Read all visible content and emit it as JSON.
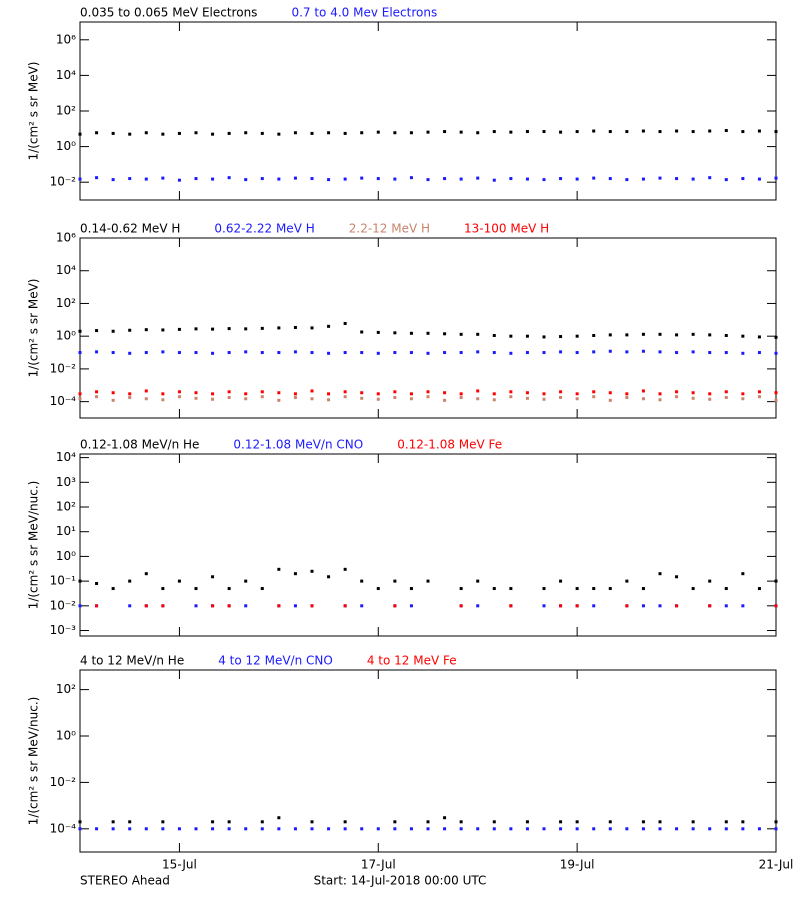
{
  "chart_data": [
    {
      "type": "scatter",
      "y_scale": "log",
      "y_label": "1/(cm² s sr MeV)",
      "xlim": [
        0,
        168
      ],
      "ylim": [
        0.001,
        10000000
      ],
      "yticks": [
        {
          "value": 0.01,
          "label": "10⁻²"
        },
        {
          "value": 1,
          "label": "10⁰"
        },
        {
          "value": 100,
          "label": "10²"
        },
        {
          "value": 10000,
          "label": "10⁴"
        },
        {
          "value": 1000000,
          "label": "10⁶"
        }
      ],
      "x": [
        0,
        4,
        8,
        12,
        16,
        20,
        24,
        28,
        32,
        36,
        40,
        44,
        48,
        52,
        56,
        60,
        64,
        68,
        72,
        76,
        80,
        84,
        88,
        92,
        96,
        100,
        104,
        108,
        112,
        116,
        120,
        124,
        128,
        132,
        136,
        140,
        144,
        148,
        152,
        156,
        160,
        164,
        168
      ],
      "series": [
        {
          "name": "0.035 to 0.065 MeV Electrons",
          "color": "#000000",
          "values": [
            5,
            6,
            5.5,
            5,
            6,
            5,
            5.5,
            6,
            5,
            5.5,
            6,
            5.5,
            5,
            6,
            5.5,
            6,
            5.5,
            6,
            6.5,
            6,
            6,
            6.5,
            7,
            6.5,
            6,
            7,
            6.5,
            7,
            7,
            6.5,
            7,
            7.5,
            7,
            7,
            7.5,
            7,
            7.5,
            7,
            7.5,
            8,
            7,
            7.5,
            7
          ]
        },
        {
          "name": "0.7 to 4.0 Mev Electrons",
          "color": "#1a1aff",
          "values": [
            0.015,
            0.018,
            0.014,
            0.016,
            0.015,
            0.017,
            0.013,
            0.016,
            0.015,
            0.018,
            0.014,
            0.016,
            0.015,
            0.017,
            0.016,
            0.014,
            0.015,
            0.017,
            0.016,
            0.015,
            0.018,
            0.014,
            0.016,
            0.015,
            0.017,
            0.013,
            0.016,
            0.015,
            0.014,
            0.016,
            0.015,
            0.017,
            0.016,
            0.014,
            0.015,
            0.017,
            0.016,
            0.015,
            0.018,
            0.014,
            0.016,
            0.015,
            0.017
          ]
        }
      ]
    },
    {
      "type": "scatter",
      "y_scale": "log",
      "y_label": "1/(cm² s sr MeV)",
      "xlim": [
        0,
        168
      ],
      "ylim": [
        1e-05,
        1000000
      ],
      "yticks": [
        {
          "value": 0.0001,
          "label": "10⁻⁴"
        },
        {
          "value": 0.01,
          "label": "10⁻²"
        },
        {
          "value": 1,
          "label": "10⁰"
        },
        {
          "value": 100,
          "label": "10²"
        },
        {
          "value": 10000,
          "label": "10⁴"
        },
        {
          "value": 1000000,
          "label": "10⁶"
        }
      ],
      "x": [
        0,
        4,
        8,
        12,
        16,
        20,
        24,
        28,
        32,
        36,
        40,
        44,
        48,
        52,
        56,
        60,
        64,
        68,
        72,
        76,
        80,
        84,
        88,
        92,
        96,
        100,
        104,
        108,
        112,
        116,
        120,
        124,
        128,
        132,
        136,
        140,
        144,
        148,
        152,
        156,
        160,
        164,
        168
      ],
      "series": [
        {
          "name": "0.14-0.62 MeV H",
          "color": "#000000",
          "values": [
            2,
            2.2,
            2,
            2.3,
            2.5,
            2.4,
            2.6,
            2.8,
            2.7,
            2.9,
            2.8,
            3,
            3.2,
            3.4,
            3.2,
            4,
            6,
            1.8,
            1.7,
            1.6,
            1.5,
            1.5,
            1.4,
            1.3,
            1.3,
            1.1,
            1,
            1,
            0.9,
            0.95,
            1,
            1.1,
            1.2,
            1.2,
            1.3,
            1.3,
            1.2,
            1.3,
            1.2,
            1.1,
            1,
            0.9,
            0.85
          ]
        },
        {
          "name": "0.62-2.22 MeV H",
          "color": "#1a1aff",
          "values": [
            0.1,
            0.11,
            0.1,
            0.09,
            0.1,
            0.11,
            0.1,
            0.1,
            0.09,
            0.1,
            0.11,
            0.1,
            0.1,
            0.11,
            0.1,
            0.09,
            0.1,
            0.1,
            0.09,
            0.1,
            0.1,
            0.09,
            0.1,
            0.1,
            0.11,
            0.1,
            0.09,
            0.1,
            0.1,
            0.11,
            0.1,
            0.11,
            0.12,
            0.11,
            0.12,
            0.11,
            0.1,
            0.11,
            0.1,
            0.1,
            0.09,
            0.1,
            0.09
          ]
        },
        {
          "name": "2.2-12 MeV H",
          "color": "#c8846c",
          "values": [
            0.00015,
            0.0002,
            0.00012,
            0.00018,
            0.00015,
            0.00013,
            0.0002,
            0.00016,
            0.00014,
            0.00018,
            0.00015,
            0.0002,
            0.00012,
            0.00018,
            0.00015,
            0.00013,
            0.0002,
            0.00016,
            0.00014,
            0.00018,
            0.00015,
            0.0002,
            0.00012,
            0.00018,
            0.00015,
            0.00013,
            0.0002,
            0.00016,
            0.00014,
            0.00018,
            0.00015,
            0.0002,
            0.00012,
            0.00018,
            0.00015,
            0.00013,
            0.0002,
            0.00016,
            0.00014,
            0.00018,
            0.00015,
            0.0002,
            0.00012
          ]
        },
        {
          "name": "13-100 MeV H",
          "color": "#ff0000",
          "values": [
            0.0003,
            0.0004,
            0.00035,
            0.0003,
            0.00045,
            0.0003,
            0.0004,
            0.00035,
            0.0003,
            0.0004,
            0.0003,
            0.0004,
            0.00035,
            0.0003,
            0.00045,
            0.0003,
            0.0004,
            0.00035,
            0.0003,
            0.0004,
            0.0003,
            0.0004,
            0.00035,
            0.0003,
            0.00045,
            0.0003,
            0.0004,
            0.00035,
            0.0003,
            0.0004,
            0.0003,
            0.0004,
            0.00035,
            0.0003,
            0.00045,
            0.0003,
            0.0004,
            0.00035,
            0.0003,
            0.0004,
            0.0003,
            0.0004,
            0.00035
          ]
        }
      ]
    },
    {
      "type": "scatter",
      "y_scale": "log",
      "y_label": "1/(cm² s sr MeV/nuc.)",
      "xlim": [
        0,
        168
      ],
      "ylim": [
        0.0006,
        14000
      ],
      "yticks": [
        {
          "value": 0.001,
          "label": "10⁻³"
        },
        {
          "value": 0.01,
          "label": "10⁻²"
        },
        {
          "value": 0.1,
          "label": "10⁻¹"
        },
        {
          "value": 1,
          "label": "10⁰"
        },
        {
          "value": 10,
          "label": "10¹"
        },
        {
          "value": 100,
          "label": "10²"
        },
        {
          "value": 1000,
          "label": "10³"
        },
        {
          "value": 10000,
          "label": "10⁴"
        }
      ],
      "x": [
        0,
        4,
        8,
        12,
        16,
        20,
        24,
        28,
        32,
        36,
        40,
        44,
        48,
        52,
        56,
        60,
        64,
        68,
        72,
        76,
        80,
        84,
        88,
        92,
        96,
        100,
        104,
        108,
        112,
        116,
        120,
        124,
        128,
        132,
        136,
        140,
        144,
        148,
        152,
        156,
        160,
        164,
        168
      ],
      "series": [
        {
          "name": "0.12-1.08 MeV/n He",
          "color": "#000000",
          "values": [
            0.1,
            0.08,
            0.05,
            0.1,
            0.2,
            0.05,
            0.1,
            0.05,
            0.15,
            0.05,
            0.1,
            0.05,
            0.3,
            0.2,
            0.25,
            0.15,
            0.3,
            0.1,
            0.05,
            0.1,
            0.05,
            0.1,
            null,
            0.05,
            0.1,
            0.05,
            0.05,
            null,
            0.05,
            0.1,
            0.05,
            0.05,
            0.05,
            0.1,
            0.05,
            0.2,
            0.15,
            0.05,
            0.1,
            0.05,
            0.2,
            0.05,
            0.1
          ]
        },
        {
          "name": "0.12-1.08 MeV/n CNO",
          "color": "#1a1aff",
          "values": [
            0.01,
            0.01,
            null,
            0.01,
            0.01,
            0.01,
            null,
            0.01,
            0.01,
            0.01,
            0.01,
            null,
            0.01,
            0.01,
            0.01,
            null,
            0.01,
            0.01,
            null,
            0.01,
            0.01,
            null,
            null,
            0.01,
            0.01,
            null,
            0.01,
            null,
            0.01,
            0.01,
            0.01,
            0.01,
            null,
            0.01,
            0.01,
            0.01,
            0.01,
            null,
            0.01,
            0.01,
            0.01,
            null,
            0.01
          ]
        },
        {
          "name": "0.12-1.08 MeV Fe",
          "color": "#ff0000",
          "values": [
            null,
            0.01,
            null,
            null,
            0.01,
            0.01,
            null,
            null,
            0.01,
            0.01,
            null,
            null,
            0.01,
            null,
            0.01,
            null,
            0.01,
            null,
            null,
            0.01,
            null,
            null,
            null,
            0.01,
            null,
            null,
            0.01,
            null,
            null,
            0.01,
            0.01,
            null,
            null,
            0.01,
            null,
            null,
            0.01,
            null,
            0.01,
            null,
            null,
            null,
            0.01
          ]
        }
      ]
    },
    {
      "type": "scatter",
      "y_scale": "log",
      "y_label": "1/(cm² s sr MeV/nuc.)",
      "xlim": [
        0,
        168
      ],
      "ylim": [
        1e-05,
        700
      ],
      "yticks": [
        {
          "value": 0.0001,
          "label": "10⁻⁴"
        },
        {
          "value": 0.01,
          "label": "10⁻²"
        },
        {
          "value": 1,
          "label": "10⁰"
        },
        {
          "value": 100,
          "label": "10²"
        }
      ],
      "xticks": [
        {
          "value": 24,
          "label": "15-Jul"
        },
        {
          "value": 72,
          "label": "17-Jul"
        },
        {
          "value": 120,
          "label": "19-Jul"
        },
        {
          "value": 168,
          "label": "21-Jul"
        }
      ],
      "x": [
        0,
        4,
        8,
        12,
        16,
        20,
        24,
        28,
        32,
        36,
        40,
        44,
        48,
        52,
        56,
        60,
        64,
        68,
        72,
        76,
        80,
        84,
        88,
        92,
        96,
        100,
        104,
        108,
        112,
        116,
        120,
        124,
        128,
        132,
        136,
        140,
        144,
        148,
        152,
        156,
        160,
        164,
        168
      ],
      "series": [
        {
          "name": "4 to 12 MeV/n He",
          "color": "#000000",
          "values": [
            0.0002,
            null,
            0.0002,
            0.0002,
            null,
            0.0002,
            null,
            null,
            0.0002,
            0.0002,
            null,
            0.0002,
            0.0003,
            null,
            0.0002,
            null,
            0.0002,
            null,
            null,
            0.0002,
            null,
            0.0002,
            0.0003,
            0.0002,
            null,
            0.0002,
            null,
            0.0002,
            null,
            0.0002,
            0.0002,
            null,
            0.0002,
            null,
            0.0002,
            0.0002,
            null,
            0.0002,
            null,
            0.0002,
            0.0002,
            null,
            0.0002
          ]
        },
        {
          "name": "4 to 12 MeV/n CNO",
          "color": "#1a1aff",
          "values": [
            0.0001,
            0.0001,
            0.0001,
            0.0001,
            0.0001,
            0.0001,
            0.0001,
            0.0001,
            0.0001,
            0.0001,
            0.0001,
            0.0001,
            0.0001,
            0.0001,
            0.0001,
            0.0001,
            0.0001,
            0.0001,
            0.0001,
            0.0001,
            0.0001,
            0.0001,
            0.0001,
            0.0001,
            0.0001,
            0.0001,
            0.0001,
            0.0001,
            0.0001,
            0.0001,
            0.0001,
            0.0001,
            0.0001,
            0.0001,
            0.0001,
            0.0001,
            0.0001,
            0.0001,
            0.0001,
            0.0001,
            0.0001,
            0.0001,
            0.0001
          ]
        },
        {
          "name": "4 to 12 MeV Fe",
          "color": "#ff0000",
          "values": [
            null,
            null,
            null,
            null,
            null,
            null,
            null,
            null,
            null,
            null,
            null,
            null,
            null,
            null,
            null,
            null,
            null,
            null,
            null,
            null,
            null,
            null,
            null,
            null,
            null,
            null,
            null,
            null,
            null,
            null,
            null,
            null,
            null,
            null,
            null,
            null,
            null,
            null,
            null,
            null,
            null,
            null,
            null
          ]
        }
      ]
    }
  ],
  "footer": {
    "left": "STEREO Ahead",
    "right": "Start: 14-Jul-2018 00:00 UTC"
  }
}
